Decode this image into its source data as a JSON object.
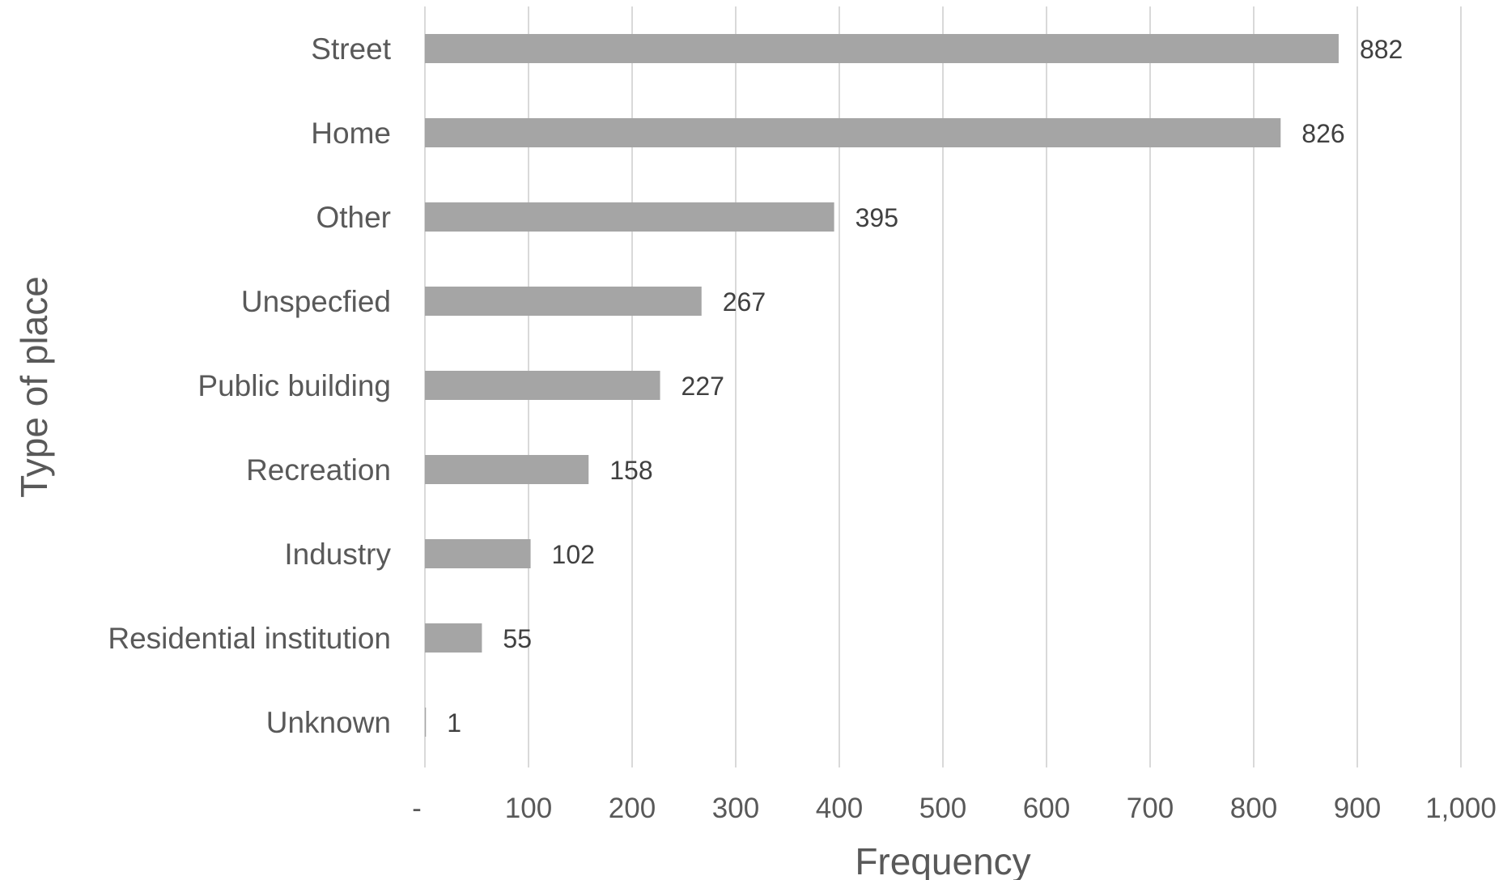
{
  "chart_data": {
    "type": "bar",
    "orientation": "horizontal",
    "categories": [
      "Street",
      "Home",
      "Other",
      "Unspecfied",
      "Public building",
      "Recreation",
      "Industry",
      "Residential institution",
      "Unknown"
    ],
    "values": [
      882,
      826,
      395,
      267,
      227,
      158,
      102,
      55,
      1
    ],
    "xlabel": "Frequency",
    "ylabel": "Type of place",
    "xlim": [
      0,
      1000
    ],
    "x_ticks": [
      0,
      100,
      200,
      300,
      400,
      500,
      600,
      700,
      800,
      900,
      1000
    ],
    "x_tick_labels": [
      "-",
      "100",
      "200",
      "300",
      "400",
      "500",
      "600",
      "700",
      "800",
      "900",
      "1,000"
    ],
    "data_labels": [
      "882",
      "826",
      "395",
      "267",
      "227",
      "158",
      "102",
      "55",
      "1"
    ],
    "grid": true,
    "legend": false,
    "bar_color": "#a5a5a5",
    "grid_color": "#d9d9d9"
  }
}
